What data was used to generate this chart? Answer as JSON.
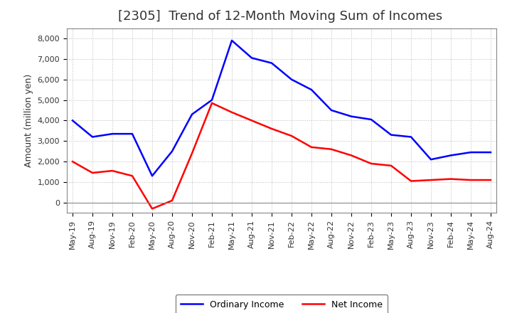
{
  "title": "[2305]  Trend of 12-Month Moving Sum of Incomes",
  "ylabel": "Amount (million yen)",
  "x_labels": [
    "May-19",
    "Aug-19",
    "Nov-19",
    "Feb-20",
    "May-20",
    "Aug-20",
    "Nov-20",
    "Feb-21",
    "May-21",
    "Aug-21",
    "Nov-21",
    "Feb-22",
    "May-22",
    "Aug-22",
    "Nov-22",
    "Feb-23",
    "May-23",
    "Aug-23",
    "Nov-23",
    "Feb-24",
    "May-24",
    "Aug-24"
  ],
  "ordinary_income": [
    4000,
    3200,
    3350,
    3350,
    1300,
    2500,
    4300,
    5000,
    7900,
    7050,
    6800,
    6000,
    5500,
    4500,
    4200,
    4050,
    3300,
    3200,
    2100,
    2300,
    2450,
    2450
  ],
  "net_income": [
    2000,
    1450,
    1550,
    1300,
    -300,
    100,
    2400,
    4850,
    4400,
    4000,
    3600,
    3250,
    2700,
    2600,
    2300,
    1900,
    1800,
    1050,
    1100,
    1150,
    1100,
    1100
  ],
  "ordinary_income_color": "#0000ff",
  "net_income_color": "#ff0000",
  "ylim": [
    -500,
    8500
  ],
  "yticks": [
    0,
    1000,
    2000,
    3000,
    4000,
    5000,
    6000,
    7000,
    8000
  ],
  "background_color": "#ffffff",
  "grid_color": "#aaaaaa",
  "legend_labels": [
    "Ordinary Income",
    "Net Income"
  ],
  "title_fontsize": 13,
  "axis_label_fontsize": 9,
  "tick_fontsize": 8,
  "line_width": 1.8
}
